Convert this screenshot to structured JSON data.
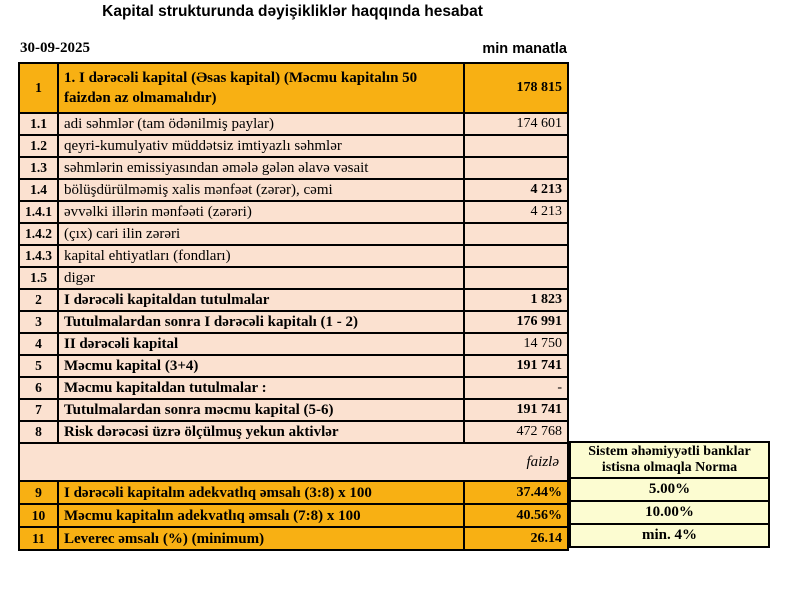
{
  "title": "Kapital strukturunda dəyişikliklər haqqında hesabat",
  "date": "30-09-2025",
  "unit_label": "min manatla",
  "percent_note": "faizlə",
  "colors": {
    "gold": "#F8B013",
    "peach": "#FBE1D0",
    "light_yellow": "#FCFCD1",
    "border": "#000000"
  },
  "table": {
    "rows": [
      {
        "kind": "header",
        "num": "1",
        "label": "1. I dərəcəli kapital (Əsas kapital) (Məcmu kapitalın 50 faizdən  az olmamalıdır)",
        "value": "178 815",
        "label_bold": true,
        "value_bold": true
      },
      {
        "kind": "item",
        "num": "1.1",
        "label": "adi səhmlər (tam ödənilmiş paylar)",
        "value": "174 601",
        "label_bold": false,
        "value_bold": false
      },
      {
        "kind": "item",
        "num": "1.2",
        "label": "qeyri-kumulyativ müddətsiz imtiyazlı səhmlər",
        "value": "",
        "label_bold": false,
        "value_bold": false
      },
      {
        "kind": "item",
        "num": "1.3",
        "label": "səhmlərin emissiyasından əmələ gələn  əlavə vəsait",
        "value": "",
        "label_bold": false,
        "value_bold": false
      },
      {
        "kind": "item",
        "num": "1.4",
        "label": "bölüşdürülməmiş xalis mənfəət (zərər), cəmi",
        "value": "4 213",
        "label_bold": false,
        "value_bold": true
      },
      {
        "kind": "item",
        "num": "1.4.1",
        "label": "əvvəlki illərin mənfəəti (zərəri)",
        "value": "4 213",
        "label_bold": false,
        "value_bold": false
      },
      {
        "kind": "item",
        "num": "1.4.2",
        "label": "(çıx) cari ilin zərəri",
        "value": "",
        "label_bold": false,
        "value_bold": false
      },
      {
        "kind": "item",
        "num": "1.4.3",
        "label": "kapital ehtiyatları (fondları)",
        "value": "",
        "label_bold": false,
        "value_bold": false
      },
      {
        "kind": "item",
        "num": "1.5",
        "label": "digər",
        "value": "",
        "label_bold": false,
        "value_bold": false
      },
      {
        "kind": "item",
        "num": "2",
        "label": "I dərəcəli kapitaldan  tutulmalar",
        "value": "1 823",
        "label_bold": true,
        "value_bold": true
      },
      {
        "kind": "item",
        "num": "3",
        "label": "Tutulmalardan  sonra I dərəcəli kapitalı (1 - 2)",
        "value": "176 991",
        "label_bold": true,
        "value_bold": true
      },
      {
        "kind": "item",
        "num": "4",
        "label": "II dərəcəli  kapital",
        "value": "14 750",
        "label_bold": true,
        "value_bold": false
      },
      {
        "kind": "item",
        "num": "5",
        "label": "Məcmu kapital (3+4)",
        "value": "191 741",
        "label_bold": true,
        "value_bold": true
      },
      {
        "kind": "item",
        "num": "6",
        "label": "Məcmu kapitaldan tutulmalar :",
        "value": "-",
        "label_bold": true,
        "value_bold": false
      },
      {
        "kind": "item",
        "num": "7",
        "label": "Tutulmalardan sonra məcmu kapital (5-6)",
        "value": "191 741",
        "label_bold": true,
        "value_bold": true
      },
      {
        "kind": "item",
        "num": "8",
        "label": "Risk dərəcəsi üzrə ölçülmuş  yekun aktivlər",
        "value": "472 768",
        "label_bold": true,
        "value_bold": false
      },
      {
        "kind": "note",
        "num": "",
        "label": "faizlə",
        "value": "",
        "label_bold": false,
        "value_bold": false
      },
      {
        "kind": "ratio",
        "num": "9",
        "label": "I dərəcəli  kapitalın  adekvatlıq əmsalı (3:8) x 100",
        "value": "37.44%",
        "label_bold": true,
        "value_bold": true
      },
      {
        "kind": "ratio",
        "num": "10",
        "label": "Məcmu kapitalın  adekvatlıq  əmsalı (7:8) x 100",
        "value": "40.56%",
        "label_bold": true,
        "value_bold": true
      },
      {
        "kind": "ratio",
        "num": "11",
        "label": "Leverec əmsalı (%) (minimum)",
        "value": "26.14",
        "label_bold": true,
        "value_bold": true
      }
    ]
  },
  "norm": {
    "header": "Sistem əhəmiyyətli banklar istisna olmaqla Norma",
    "values": [
      "5.00%",
      "10.00%",
      "min. 4%"
    ]
  }
}
